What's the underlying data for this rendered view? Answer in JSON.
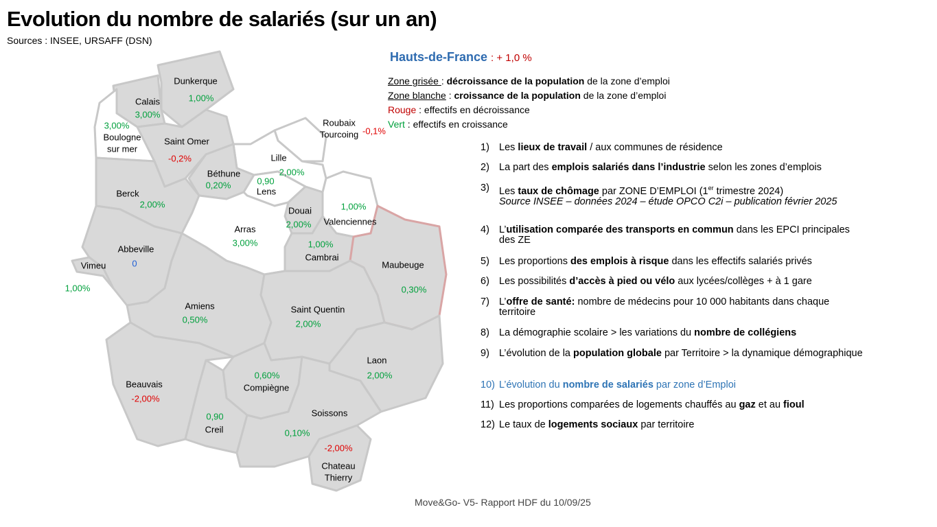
{
  "header": {
    "title": "Evolution du nombre de salariés (sur un an)",
    "source": "Sources : INSEE, URSAFF (DSN)"
  },
  "region": {
    "name": "Hauts-de-France",
    "change": ": + 1,0 %"
  },
  "legend": [
    [
      {
        "text": "Zone grisée ",
        "style": "u"
      },
      {
        "text": ": ",
        "style": ""
      },
      {
        "text": "décroissance de la population",
        "style": "b"
      },
      {
        "text": " de la zone d’emploi",
        "style": ""
      }
    ],
    [
      {
        "text": "Zone blanche",
        "style": "u"
      },
      {
        "text": " : ",
        "style": ""
      },
      {
        "text": "croissance de la population",
        "style": "b"
      },
      {
        "text": " de la zone d’emploi",
        "style": ""
      }
    ],
    [
      {
        "text": "Rouge",
        "style": "red"
      },
      {
        "text": " : effectifs  en décroissance",
        "style": ""
      }
    ],
    [
      {
        "text": "Vert",
        "style": "green"
      },
      {
        "text": " : effectifs en croissance",
        "style": ""
      }
    ]
  ],
  "zones": [
    {
      "name": [
        "Dunkerque"
      ],
      "value": "1,00%",
      "color": "green"
    },
    {
      "name": [
        "Calais"
      ],
      "value": "3,00%",
      "color": "green"
    },
    {
      "name": [
        "Boulogne",
        "sur mer"
      ],
      "value": "3,00%",
      "color": "green"
    },
    {
      "name": [
        "Saint Omer"
      ],
      "value": "-0,2%",
      "color": "red"
    },
    {
      "name": [
        "Roubaix",
        "Tourcoing"
      ],
      "value": "-0,1%",
      "color": "red"
    },
    {
      "name": [
        "Lille"
      ],
      "value": "2,00%",
      "color": "green"
    },
    {
      "name": [
        "Béthune"
      ],
      "value": "0,20%",
      "color": "green"
    },
    {
      "name": [
        "Lens"
      ],
      "value": "0,90",
      "color": "green"
    },
    {
      "name": [
        "Berck"
      ],
      "value": "2,00%",
      "color": "green"
    },
    {
      "name": [
        "Douai"
      ],
      "value": "2,00%",
      "color": "green"
    },
    {
      "name": [
        "Valenciennes"
      ],
      "value": "1,00%",
      "color": "green"
    },
    {
      "name": [
        "Arras"
      ],
      "value": "3,00%",
      "color": "green"
    },
    {
      "name": [
        "Abbeville"
      ],
      "value": "0",
      "color": "blue"
    },
    {
      "name": [
        "Vimeu"
      ],
      "value": "1,00%",
      "color": "green"
    },
    {
      "name": [
        "Cambrai"
      ],
      "value": "1,00%",
      "color": "green"
    },
    {
      "name": [
        "Maubeuge"
      ],
      "value": "0,30%",
      "color": "green"
    },
    {
      "name": [
        "Amiens"
      ],
      "value": "0,50%",
      "color": "green"
    },
    {
      "name": [
        "Saint Quentin"
      ],
      "value": "2,00%",
      "color": "green"
    },
    {
      "name": [
        "Laon"
      ],
      "value": "2,00%",
      "color": "green"
    },
    {
      "name": [
        "Beauvais"
      ],
      "value": "-2,00%",
      "color": "red"
    },
    {
      "name": [
        "Compiègne"
      ],
      "value": "0,60%",
      "color": "green"
    },
    {
      "name": [
        "Creil"
      ],
      "value": "0,90",
      "color": "green"
    },
    {
      "name": [
        "Soissons"
      ],
      "value": "0,10%",
      "color": "green"
    },
    {
      "name": [
        "Chateau",
        "Thierry"
      ],
      "value": "-2,00%",
      "color": "red"
    }
  ],
  "list": [
    {
      "number": "1)",
      "lines": [
        [
          {
            "text": "Les ",
            "style": ""
          },
          {
            "text": "lieux de travail",
            "style": "b"
          },
          {
            "text": " / aux communes de résidence",
            "style": ""
          }
        ]
      ]
    },
    {
      "number": "2)",
      "lines": [
        [
          {
            "text": "La part des ",
            "style": ""
          },
          {
            "text": "emplois salariés dans l’industrie",
            "style": "b"
          },
          {
            "text": " selon les zones d’emplois",
            "style": ""
          }
        ]
      ]
    },
    {
      "number": "3)",
      "lines": [
        [
          {
            "text": "Les ",
            "style": ""
          },
          {
            "text": "taux de chômage",
            "style": "b"
          },
          {
            "text": " par ZONE D’EMPLOI (1",
            "style": ""
          },
          {
            "text": "er",
            "style": "sup"
          },
          {
            "text": " trimestre 2024)",
            "style": ""
          }
        ],
        [
          {
            "text": "Source INSEE – données 2024 – étude OPCO C2i – publication février 2025",
            "style": "i"
          }
        ]
      ]
    },
    {
      "number": "4)",
      "lines": [
        [
          {
            "text": "L’",
            "style": ""
          },
          {
            "text": "utilisation comparée des transports en commun",
            "style": "b"
          },
          {
            "text": " dans les EPCI principales des ZE",
            "style": ""
          }
        ]
      ]
    },
    {
      "number": "5)",
      "lines": [
        [
          {
            "text": "Les proportions ",
            "style": ""
          },
          {
            "text": "des emplois à risque",
            "style": "b"
          },
          {
            "text": " dans les effectifs salariés privés",
            "style": ""
          }
        ]
      ]
    },
    {
      "number": "6)",
      "lines": [
        [
          {
            "text": "Les possibilités ",
            "style": ""
          },
          {
            "text": "d’accès à pied ou vélo",
            "style": "b"
          },
          {
            "text": " aux lycées/collèges + à 1 gare",
            "style": ""
          }
        ]
      ]
    },
    {
      "number": "7)",
      "lines": [
        [
          {
            "text": "L’",
            "style": ""
          },
          {
            "text": "offre de santé:",
            "style": "b"
          },
          {
            "text": " nombre de médecins  pour 10 000 habitants dans chaque territoire",
            "style": ""
          }
        ]
      ]
    },
    {
      "number": "8)",
      "lines": [
        [
          {
            "text": "La démographie scolaire > les variations du ",
            "style": ""
          },
          {
            "text": "nombre de collégiens",
            "style": "b"
          }
        ]
      ]
    },
    {
      "number": "9)",
      "lines": [
        [
          {
            "text": "L’évolution de la ",
            "style": ""
          },
          {
            "text": "population globale",
            "style": "b"
          },
          {
            "text": " par Territoire > la dynamique démographique",
            "style": ""
          }
        ]
      ]
    },
    {
      "number": "10)",
      "highlight": true,
      "lines": [
        [
          {
            "text": "L’évolution du ",
            "style": ""
          },
          {
            "text": "nombre de salariés",
            "style": "b"
          },
          {
            "text": " par zone d’Emploi",
            "style": ""
          }
        ]
      ]
    },
    {
      "number": "11)",
      "lines": [
        [
          {
            "text": "Les proportions comparées de logements chauffés au ",
            "style": ""
          },
          {
            "text": "gaz",
            "style": "b"
          },
          {
            "text": " et au ",
            "style": ""
          },
          {
            "text": "fioul",
            "style": "b"
          }
        ]
      ]
    },
    {
      "number": "12)",
      "lines": [
        [
          {
            "text": "Le taux de ",
            "style": ""
          },
          {
            "text": "logements sociaux",
            "style": "b"
          },
          {
            "text": " par territoire",
            "style": ""
          }
        ]
      ]
    }
  ],
  "footer": "Move&Go- V5- Rapport HDF du 10/09/25"
}
